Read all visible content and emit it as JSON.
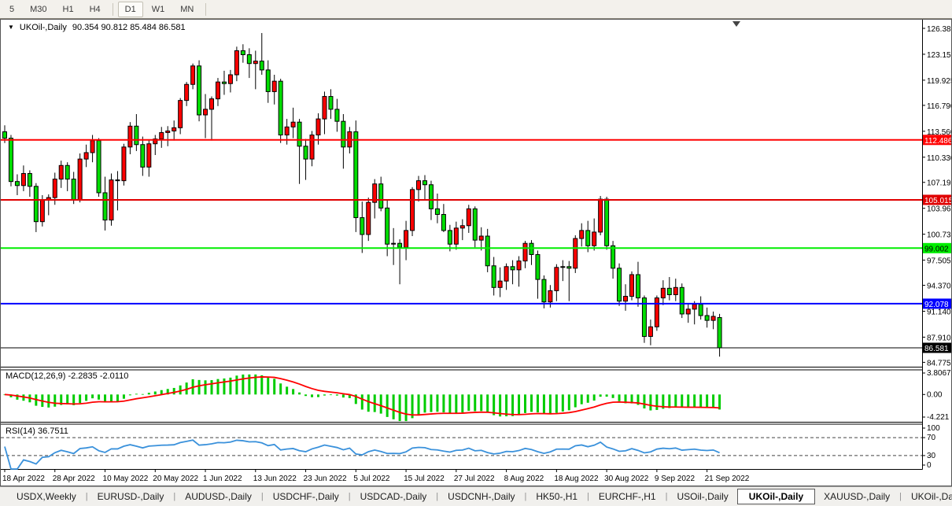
{
  "toolbar": {
    "timeframes": [
      {
        "label": "5",
        "active": false
      },
      {
        "label": "M30",
        "active": false
      },
      {
        "label": "H1",
        "active": false
      },
      {
        "label": "H4",
        "active": false
      },
      {
        "label": "D1",
        "active": true
      },
      {
        "label": "W1",
        "active": false
      },
      {
        "label": "MN",
        "active": false
      }
    ]
  },
  "chart_header": {
    "dropdown_icon": "▼",
    "symbol": "UKOil-,Daily",
    "ohlc": "90.354 90.812 85.484 86.581"
  },
  "chart_shift_marker": "▼",
  "colors": {
    "up_body": "#ff0000",
    "down_body": "#00dd00",
    "outline": "#000000",
    "wick": "#000000",
    "macd_hist": "#00cc00",
    "macd_signal": "#ff0000",
    "rsi_line": "#3a91db",
    "axis_text": "#000000",
    "level_dash": "#444444",
    "panel_border": "#000000"
  },
  "price_axis_labels": [
    "126.385",
    "123.155",
    "119.925",
    "116.790",
    "113.560",
    "110.330",
    "107.195",
    "103.965",
    "100.735",
    "97.505",
    "94.370",
    "91.140",
    "87.910",
    "84.775"
  ],
  "hlines": [
    {
      "price": 112.486,
      "label": "112.486",
      "color": "#ff0000",
      "text_color": "#ffffff",
      "width": 2
    },
    {
      "price": 105.015,
      "label": "105.015",
      "color": "#e00000",
      "text_color": "#ffffff",
      "width": 2
    },
    {
      "price": 99.002,
      "label": "99.002",
      "color": "#00ee00",
      "text_color": "#000000",
      "width": 2
    },
    {
      "price": 92.078,
      "label": "92.078",
      "color": "#0000ff",
      "text_color": "#ffffff",
      "width": 2
    },
    {
      "price": 86.581,
      "label": "86.581",
      "color": "#000000",
      "text_color": "#ffffff",
      "width": 1
    }
  ],
  "chart_data": {
    "type": "candlestick",
    "title": "UKOil-,Daily",
    "ylim": [
      84.2,
      127.4
    ],
    "dates": [
      "18 Apr",
      "19 Apr",
      "20 Apr",
      "21 Apr",
      "22 Apr",
      "25 Apr",
      "26 Apr",
      "27 Apr",
      "28 Apr",
      "29 Apr",
      "2 May",
      "3 May",
      "4 May",
      "5 May",
      "6 May",
      "9 May",
      "10 May",
      "11 May",
      "12 May",
      "13 May",
      "16 May",
      "17 May",
      "18 May",
      "19 May",
      "20 May",
      "23 May",
      "24 May",
      "25 May",
      "26 May",
      "27 May",
      "30 May",
      "31 May",
      "1 Jun",
      "2 Jun",
      "3 Jun",
      "6 Jun",
      "7 Jun",
      "8 Jun",
      "9 Jun",
      "10 Jun",
      "13 Jun",
      "14 Jun",
      "15 Jun",
      "16 Jun",
      "17 Jun",
      "20 Jun",
      "21 Jun",
      "22 Jun",
      "23 Jun",
      "24 Jun",
      "27 Jun",
      "28 Jun",
      "29 Jun",
      "30 Jun",
      "1 Jul",
      "4 Jul",
      "5 Jul",
      "6 Jul",
      "7 Jul",
      "8 Jul",
      "11 Jul",
      "12 Jul",
      "13 Jul",
      "14 Jul",
      "15 Jul",
      "18 Jul",
      "19 Jul",
      "20 Jul",
      "21 Jul",
      "22 Jul",
      "25 Jul",
      "26 Jul",
      "27 Jul",
      "28 Jul",
      "29 Jul",
      "1 Aug",
      "2 Aug",
      "3 Aug",
      "4 Aug",
      "5 Aug",
      "8 Aug",
      "9 Aug",
      "10 Aug",
      "11 Aug",
      "12 Aug",
      "15 Aug",
      "16 Aug",
      "17 Aug",
      "18 Aug",
      "19 Aug",
      "22 Aug",
      "23 Aug",
      "24 Aug",
      "25 Aug",
      "26 Aug",
      "29 Aug",
      "30 Aug",
      "31 Aug",
      "1 Sep",
      "2 Sep",
      "5 Sep",
      "6 Sep",
      "7 Sep",
      "8 Sep",
      "9 Sep",
      "12 Sep",
      "13 Sep",
      "14 Sep",
      "15 Sep",
      "16 Sep",
      "19 Sep",
      "20 Sep",
      "21 Sep",
      "22 Sep",
      "23 Sep"
    ],
    "open": [
      113.5,
      112.7,
      107.3,
      106.8,
      108.3,
      106.7,
      102.3,
      105.0,
      105.3,
      107.6,
      109.3,
      107.6,
      105.0,
      110.1,
      110.9,
      112.4,
      105.9,
      102.5,
      107.5,
      107.4,
      111.6,
      114.2,
      111.9,
      109.1,
      112.0,
      112.6,
      113.4,
      113.6,
      114.0,
      117.4,
      119.4,
      121.7,
      115.6,
      116.3,
      117.6,
      119.7,
      119.5,
      120.6,
      123.6,
      123.1,
      122.0,
      122.3,
      121.2,
      118.5,
      119.8,
      113.1,
      114.1,
      114.7,
      111.7,
      110.1,
      113.1,
      115.1,
      117.9,
      116.3,
      114.8,
      111.6,
      113.5,
      102.8,
      100.7,
      104.7,
      107.0,
      104.0,
      99.5,
      99.6,
      99.1,
      101.2,
      106.3,
      107.4,
      106.9,
      103.9,
      103.2,
      101.2,
      99.5,
      101.5,
      101.8,
      103.9,
      100.0,
      100.5,
      96.8,
      94.1,
      94.9,
      96.7,
      96.3,
      97.4,
      99.6,
      98.2,
      95.1,
      92.3,
      93.7,
      96.6,
      96.7,
      96.5,
      100.2,
      101.2,
      99.3,
      101.0,
      105.1,
      99.3,
      96.5,
      92.4,
      93.0,
      95.7,
      92.8,
      88.0,
      89.2,
      92.8,
      94.0,
      93.2,
      94.1,
      90.8,
      91.4,
      92.0,
      90.6,
      90.0,
      90.354
    ],
    "high": [
      114.3,
      113.1,
      108.2,
      109.3,
      108.7,
      107.1,
      105.6,
      105.7,
      108.4,
      109.9,
      109.7,
      108.5,
      110.8,
      111.9,
      113.1,
      112.7,
      107.9,
      108.3,
      108.6,
      112.0,
      114.7,
      115.7,
      112.9,
      112.5,
      113.1,
      114.1,
      114.2,
      114.9,
      117.7,
      119.7,
      122.0,
      122.4,
      118.2,
      117.9,
      120.2,
      121.1,
      121.2,
      124.1,
      124.4,
      123.9,
      123.6,
      125.8,
      122.4,
      120.6,
      120.1,
      115.1,
      116.5,
      115.1,
      112.6,
      113.6,
      115.8,
      118.5,
      118.8,
      117.6,
      115.7,
      114.1,
      114.9,
      104.8,
      105.3,
      107.6,
      107.9,
      105.0,
      101.5,
      100.1,
      102.4,
      106.6,
      108.0,
      108.1,
      107.4,
      105.8,
      104.5,
      101.9,
      102.3,
      102.6,
      104.4,
      104.2,
      101.6,
      101.4,
      97.9,
      96.6,
      97.1,
      97.5,
      98.0,
      99.9,
      100.0,
      98.7,
      95.6,
      94.4,
      97.0,
      97.5,
      97.4,
      100.6,
      102.1,
      102.4,
      102.7,
      105.5,
      105.4,
      99.9,
      97.1,
      94.5,
      96.1,
      97.3,
      93.1,
      90.1,
      93.1,
      95.0,
      95.4,
      95.2,
      94.6,
      92.1,
      92.4,
      93.0,
      91.6,
      91.1,
      90.812
    ],
    "low": [
      112.1,
      106.7,
      105.6,
      106.1,
      105.4,
      101.0,
      101.7,
      103.1,
      104.4,
      106.5,
      106.1,
      104.5,
      104.7,
      109.1,
      109.7,
      105.4,
      101.2,
      101.8,
      103.7,
      106.8,
      110.7,
      111.1,
      108.0,
      107.9,
      110.6,
      111.5,
      111.7,
      112.4,
      113.2,
      116.7,
      118.8,
      114.8,
      112.7,
      112.4,
      116.7,
      118.1,
      118.4,
      119.8,
      122.1,
      120.2,
      118.8,
      120.6,
      117.1,
      116.9,
      112.1,
      111.9,
      112.7,
      107.0,
      107.5,
      109.2,
      111.9,
      113.2,
      115.1,
      113.5,
      108.9,
      110.8,
      101.0,
      98.4,
      99.9,
      102.7,
      103.6,
      98.0,
      96.9,
      94.5,
      97.5,
      100.5,
      104.8,
      105.0,
      102.5,
      102.1,
      101.0,
      98.6,
      98.8,
      100.0,
      100.9,
      99.1,
      98.7,
      96.0,
      93.1,
      92.9,
      93.8,
      94.5,
      94.2,
      96.5,
      96.9,
      92.7,
      91.5,
      91.6,
      92.4,
      94.9,
      92.4,
      95.9,
      99.2,
      98.5,
      98.7,
      100.6,
      98.8,
      95.2,
      91.8,
      91.2,
      92.5,
      91.7,
      87.2,
      86.9,
      88.7,
      91.9,
      92.5,
      92.4,
      90.3,
      89.7,
      89.5,
      90.1,
      89.1,
      88.9,
      85.484
    ],
    "close": [
      112.7,
      107.3,
      106.8,
      108.3,
      106.7,
      102.3,
      105.0,
      105.3,
      107.6,
      109.3,
      107.6,
      105.0,
      110.1,
      110.9,
      112.4,
      105.9,
      102.5,
      107.5,
      107.4,
      111.6,
      114.2,
      111.9,
      109.1,
      112.0,
      112.6,
      113.4,
      113.6,
      114.0,
      117.4,
      119.4,
      121.7,
      115.6,
      116.3,
      117.6,
      119.7,
      119.5,
      120.6,
      123.6,
      123.1,
      122.0,
      122.3,
      121.2,
      118.5,
      119.8,
      113.1,
      114.1,
      114.7,
      111.7,
      110.1,
      113.1,
      115.1,
      117.9,
      116.3,
      114.8,
      111.6,
      113.5,
      102.8,
      100.7,
      104.7,
      107.0,
      104.0,
      99.5,
      99.6,
      99.1,
      101.2,
      106.3,
      107.4,
      106.9,
      103.9,
      103.2,
      101.2,
      99.5,
      101.5,
      101.8,
      103.9,
      100.0,
      100.5,
      96.8,
      94.1,
      94.9,
      96.7,
      96.3,
      97.4,
      99.6,
      98.2,
      95.1,
      92.3,
      93.7,
      96.6,
      96.7,
      96.5,
      100.2,
      101.2,
      99.3,
      101.0,
      105.1,
      99.3,
      96.5,
      92.4,
      93.0,
      95.7,
      92.8,
      88.0,
      89.2,
      92.8,
      94.0,
      93.2,
      94.1,
      90.8,
      91.4,
      92.0,
      90.6,
      90.0,
      90.5,
      86.581
    ],
    "date_ticks": [
      {
        "i": 0,
        "label": "18 Apr 2022"
      },
      {
        "i": 8,
        "label": "28 Apr 2022"
      },
      {
        "i": 16,
        "label": "10 May 2022"
      },
      {
        "i": 24,
        "label": "20 May 2022"
      },
      {
        "i": 32,
        "label": "1 Jun 2022"
      },
      {
        "i": 40,
        "label": "13 Jun 2022"
      },
      {
        "i": 48,
        "label": "23 Jun 2022"
      },
      {
        "i": 56,
        "label": "5 Jul 2022"
      },
      {
        "i": 64,
        "label": "15 Jul 2022"
      },
      {
        "i": 72,
        "label": "27 Jul 2022"
      },
      {
        "i": 80,
        "label": "8 Aug 2022"
      },
      {
        "i": 88,
        "label": "18 Aug 2022"
      },
      {
        "i": 96,
        "label": "30 Aug 2022"
      },
      {
        "i": 104,
        "label": "9 Sep 2022"
      },
      {
        "i": 112,
        "label": "21 Sep 2022"
      }
    ],
    "indicators": {
      "macd": {
        "label": "MACD(12,26,9) -2.2835 -2.0110",
        "params": [
          12,
          26,
          9
        ],
        "value": -2.2835,
        "signal_value": -2.011,
        "scale_labels": [
          "3.8067",
          "0.00",
          "-4.221"
        ],
        "ylim": [
          -4.221,
          3.8067
        ]
      },
      "rsi": {
        "label": "RSI(14) 36.7511",
        "period": 14,
        "value": 36.7511,
        "levels": [
          70,
          30
        ],
        "scale_labels": [
          "100",
          "70",
          "30",
          "0"
        ],
        "ylim": [
          0,
          100
        ]
      }
    }
  },
  "tabs": {
    "items": [
      {
        "label": "USDX,Weekly",
        "active": false
      },
      {
        "label": "EURUSD-,Daily",
        "active": false
      },
      {
        "label": "AUDUSD-,Daily",
        "active": false
      },
      {
        "label": "USDCHF-,Daily",
        "active": false
      },
      {
        "label": "USDCAD-,Daily",
        "active": false
      },
      {
        "label": "USDCNH-,Daily",
        "active": false
      },
      {
        "label": "HK50-,H1",
        "active": false
      },
      {
        "label": "EURCHF-,H1",
        "active": false
      },
      {
        "label": "USOil-,Daily",
        "active": false
      },
      {
        "label": "UKOil-,Daily",
        "active": true
      },
      {
        "label": "XAUUSD-,Daily",
        "active": false
      },
      {
        "label": "UKOil-,Da",
        "active": false
      }
    ],
    "scroll_left": "◄",
    "scroll_right": "►"
  }
}
